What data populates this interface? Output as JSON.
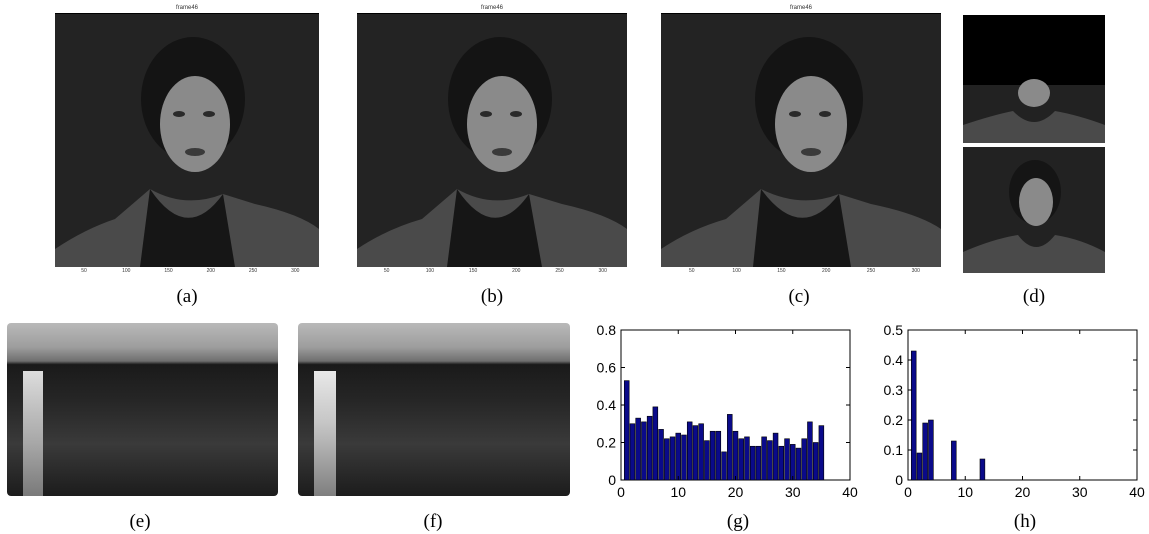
{
  "frames": {
    "title_a": "frame46",
    "title_b": "frame46",
    "title_c": "frame46",
    "xticks": [
      "50",
      "100",
      "150",
      "200",
      "250",
      "300"
    ]
  },
  "captions": {
    "a": "(a)",
    "b": "(b)",
    "c": "(c)",
    "d": "(d)",
    "e": "(e)",
    "f": "(f)",
    "g": "(g)",
    "h": "(h)"
  },
  "chart_data": [
    {
      "type": "bar",
      "panel": "g",
      "x": [
        1,
        2,
        3,
        4,
        5,
        6,
        7,
        8,
        9,
        10,
        11,
        12,
        13,
        14,
        15,
        16,
        17,
        18,
        19,
        20,
        21,
        22,
        23,
        24,
        25,
        26,
        27,
        28,
        29,
        30,
        31,
        32,
        33,
        34,
        35
      ],
      "values": [
        0.53,
        0.3,
        0.33,
        0.31,
        0.34,
        0.39,
        0.27,
        0.22,
        0.23,
        0.25,
        0.24,
        0.31,
        0.29,
        0.3,
        0.21,
        0.26,
        0.26,
        0.15,
        0.35,
        0.26,
        0.22,
        0.23,
        0.18,
        0.18,
        0.23,
        0.21,
        0.25,
        0.18,
        0.22,
        0.19,
        0.17,
        0.22,
        0.31,
        0.2,
        0.29
      ],
      "xlim": [
        0,
        40
      ],
      "ylim": [
        0,
        0.8
      ],
      "xticks": [
        "0",
        "10",
        "20",
        "30",
        "40"
      ],
      "yticks": [
        "0",
        "0.2",
        "0.4",
        "0.6",
        "0.8"
      ],
      "bar_color": "#0a0a8a"
    },
    {
      "type": "bar",
      "panel": "h",
      "x": [
        1,
        2,
        3,
        4,
        5,
        6,
        7,
        8,
        9,
        10,
        11,
        12,
        13,
        14,
        15,
        16,
        17,
        18,
        19,
        20,
        21,
        22,
        23,
        24,
        25,
        26,
        27,
        28,
        29,
        30,
        31,
        32,
        33,
        34,
        35
      ],
      "values": [
        0.43,
        0.09,
        0.19,
        0.2,
        0,
        0,
        0,
        0.13,
        0,
        0,
        0,
        0,
        0.07,
        0,
        0,
        0,
        0,
        0,
        0,
        0,
        0,
        0,
        0,
        0,
        0,
        0,
        0,
        0,
        0,
        0,
        0,
        0,
        0,
        0,
        0
      ],
      "xlim": [
        0,
        40
      ],
      "ylim": [
        0,
        0.5
      ],
      "xticks": [
        "0",
        "10",
        "20",
        "30",
        "40"
      ],
      "yticks": [
        "0",
        "0.1",
        "0.2",
        "0.3",
        "0.4",
        "0.5"
      ],
      "bar_color": "#0a0a8a"
    }
  ]
}
